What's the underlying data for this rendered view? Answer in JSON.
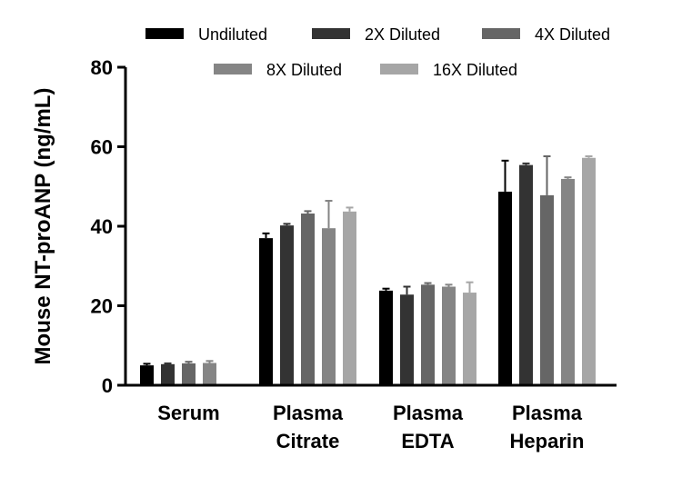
{
  "chart_data": {
    "type": "bar",
    "title": "",
    "xlabel": "",
    "ylabel": "Mouse NT-proANP (ng/mL)",
    "ylim": [
      0,
      80
    ],
    "yticks": [
      "0",
      "20",
      "40",
      "60",
      "80"
    ],
    "legend_position": "top",
    "categories": [
      [
        "Serum"
      ],
      [
        "Plasma",
        "Citrate"
      ],
      [
        "Plasma",
        "EDTA"
      ],
      [
        "Plasma",
        "Heparin"
      ]
    ],
    "series": [
      {
        "name": "Undiluted",
        "color": "#000000",
        "values": [
          5.0,
          37.0,
          23.8,
          48.7
        ],
        "errors": [
          0.4,
          1.2,
          0.5,
          7.8
        ]
      },
      {
        "name": "2X Diluted",
        "color": "#333333",
        "values": [
          5.3,
          40.2,
          22.8,
          55.4
        ],
        "errors": [
          0.2,
          0.4,
          2.0,
          0.4
        ]
      },
      {
        "name": "4X Diluted",
        "color": "#666666",
        "values": [
          5.5,
          43.2,
          25.3,
          47.8
        ],
        "errors": [
          0.4,
          0.6,
          0.4,
          9.8
        ]
      },
      {
        "name": "8X Diluted",
        "color": "#858585",
        "values": [
          5.6,
          39.5,
          24.8,
          51.9
        ],
        "errors": [
          0.5,
          6.9,
          0.5,
          0.4
        ]
      },
      {
        "name": "16X Diluted",
        "color": "#a6a6a6",
        "values": [
          null,
          43.7,
          23.3,
          57.2
        ],
        "errors": [
          0,
          1.0,
          2.6,
          0.4
        ]
      }
    ]
  }
}
